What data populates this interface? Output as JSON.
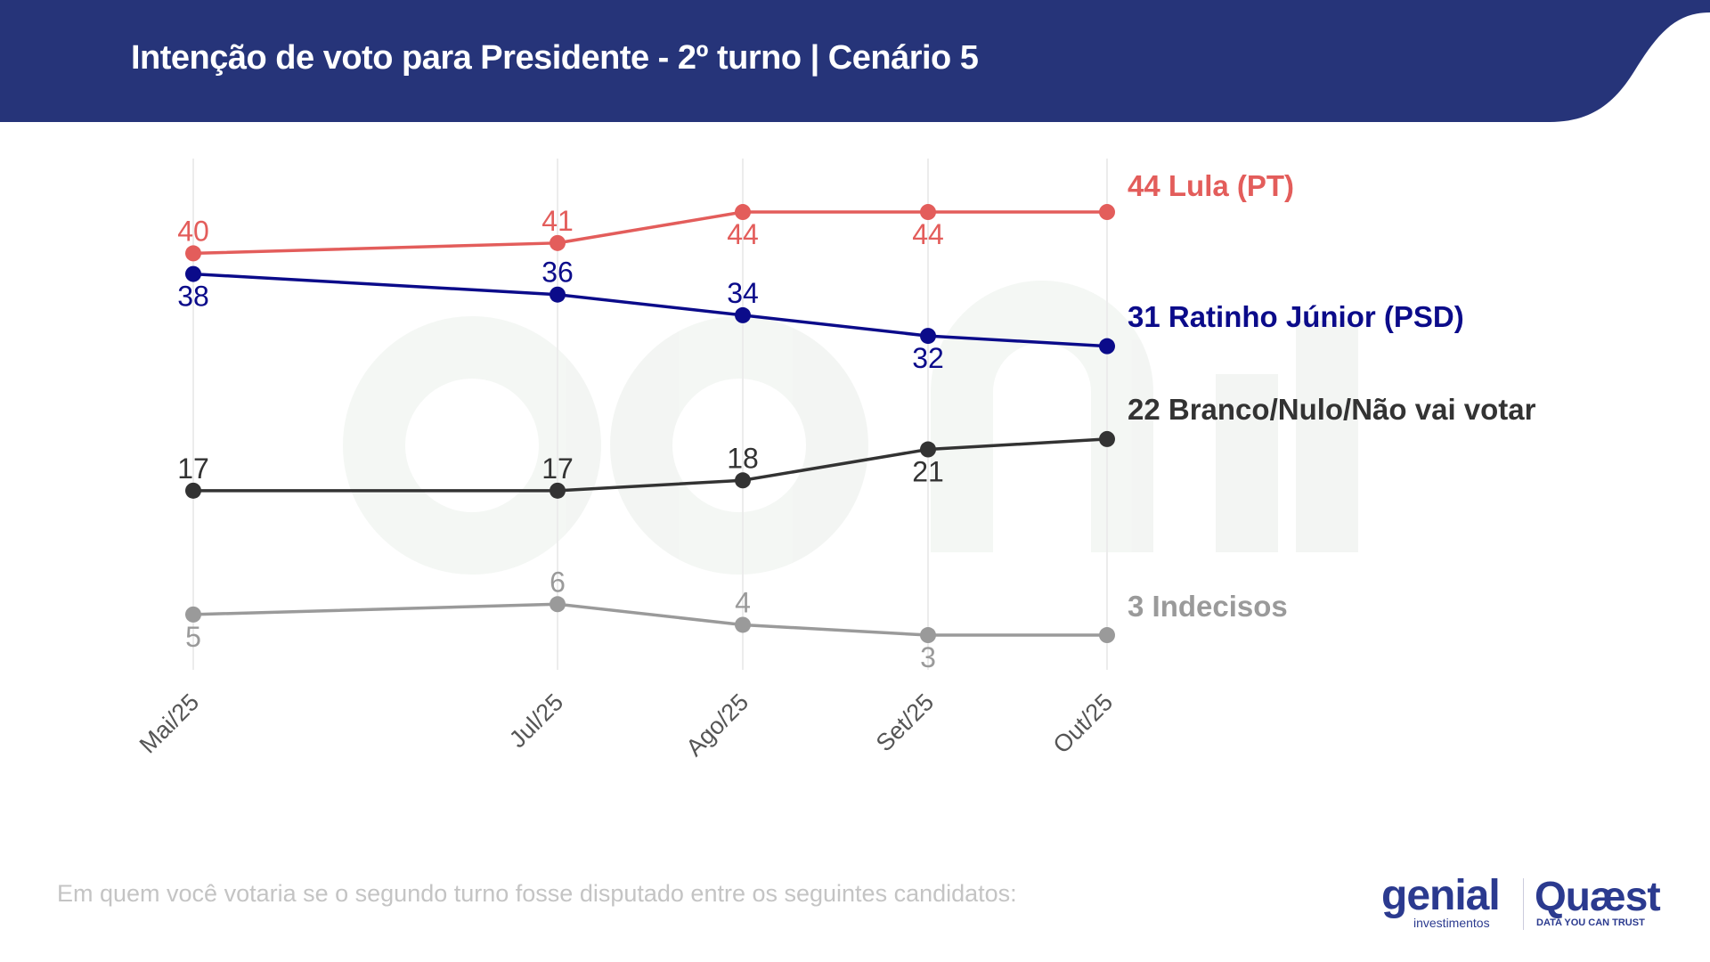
{
  "header": {
    "title": "Intenção de voto para Presidente - 2º turno | Cenário 5",
    "color": "#263479"
  },
  "footer": {
    "question": "Em quem você votaria se o segundo turno fosse disputado entre os seguintes candidatos:"
  },
  "logos": {
    "genial": "genial",
    "genial_sub": "investimentos",
    "quaest": "Quæst",
    "quaest_sub": "DATA YOU CAN TRUST"
  },
  "watermark": {
    "text": "genial investimentos"
  },
  "chart_data": {
    "type": "line",
    "title": "Intenção de voto para Presidente - 2º turno | Cenário 5",
    "categories": [
      "Mai/25",
      "Jul/25",
      "Ago/25",
      "Set/25",
      "Out/25"
    ],
    "ylim": [
      0,
      48
    ],
    "grid": "vertical",
    "legend": "right-inline",
    "series": [
      {
        "name": "Lula (PT)",
        "legend_label": "44 Lula (PT)",
        "color": "#e35d5b",
        "values": [
          40,
          41,
          44,
          44,
          44
        ],
        "label_pos": [
          "above",
          "below",
          "below",
          "below",
          null
        ]
      },
      {
        "name": "Ratinho Júnior (PSD)",
        "legend_label": "31 Ratinho Júnior (PSD)",
        "color": "#0b0b8a",
        "values": [
          38,
          36,
          34,
          32,
          31
        ],
        "label_pos": [
          "below",
          "above",
          "above",
          "below",
          null
        ]
      },
      {
        "name": "Branco/Nulo/Não vai votar",
        "legend_label": "22 Branco/Nulo/Não vai votar",
        "color": "#333333",
        "values": [
          17,
          17,
          18,
          21,
          22
        ],
        "label_pos": [
          "above",
          "above",
          "above",
          "below",
          null
        ]
      },
      {
        "name": "Indecisos",
        "legend_label": "3 Indecisos",
        "color": "#9a9a9a",
        "values": [
          5,
          6,
          4,
          3,
          3
        ],
        "label_pos": [
          "below",
          "above",
          "above",
          "below",
          null
        ]
      }
    ]
  }
}
